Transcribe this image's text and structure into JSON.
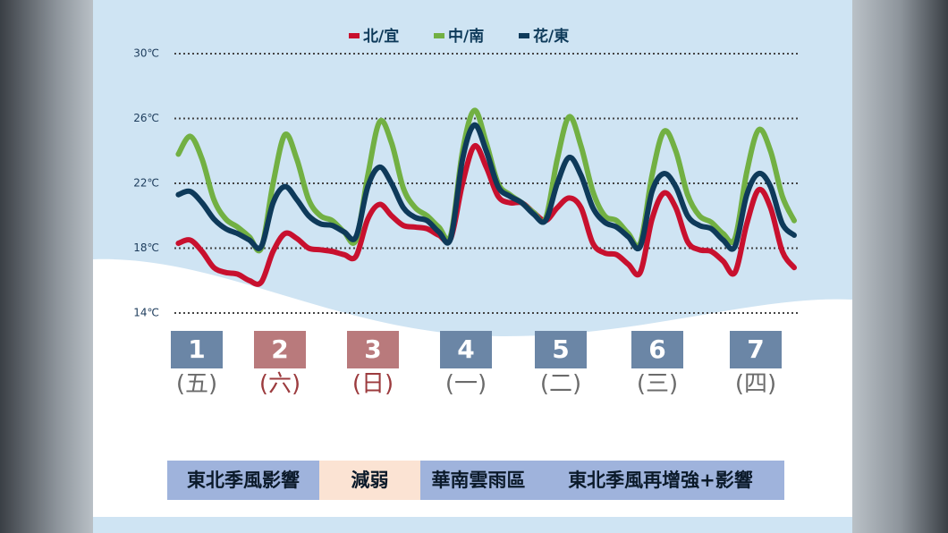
{
  "chart_data": {
    "type": "line",
    "x": [
      9,
      12,
      15,
      18,
      21,
      24,
      27,
      30,
      33,
      36,
      39,
      42,
      45,
      48,
      51,
      54,
      57,
      60,
      63,
      66,
      69,
      72,
      75,
      78,
      81,
      84,
      87,
      90,
      93,
      96,
      99,
      102,
      105,
      108,
      111,
      114,
      117,
      120,
      123,
      126,
      129,
      132,
      135,
      138,
      141,
      144,
      147,
      150,
      153,
      156,
      159,
      162,
      165
    ],
    "xlim": [
      8,
      165
    ],
    "ylim": [
      14,
      30
    ],
    "yticks": [
      {
        "value": 14,
        "label": "14℃"
      },
      {
        "value": 18,
        "label": "18℃"
      },
      {
        "value": 22,
        "label": "22℃"
      },
      {
        "value": 26,
        "label": "26℃"
      },
      {
        "value": 30,
        "label": "30℃"
      }
    ],
    "grid": true,
    "series": [
      {
        "name": "北/宜",
        "color": "#c8102e",
        "values": [
          18.3,
          18.5,
          17.8,
          16.8,
          16.5,
          16.4,
          16.0,
          15.9,
          17.8,
          18.9,
          18.6,
          18.0,
          17.9,
          17.8,
          17.6,
          17.5,
          19.8,
          20.7,
          20.0,
          19.4,
          19.3,
          19.2,
          18.8,
          18.6,
          22.0,
          24.3,
          23.0,
          21.2,
          20.8,
          20.8,
          20.2,
          19.7,
          20.5,
          21.1,
          20.5,
          18.3,
          17.7,
          17.6,
          17.0,
          16.5,
          19.8,
          21.4,
          20.5,
          18.4,
          17.9,
          17.8,
          17.2,
          16.5,
          19.5,
          21.6,
          20.5,
          17.8,
          16.8
        ]
      },
      {
        "name": "中/南",
        "color": "#72b043",
        "values": [
          23.8,
          24.9,
          23.5,
          21.0,
          19.8,
          19.3,
          18.7,
          18.0,
          22.0,
          25.0,
          23.5,
          21.0,
          20.0,
          19.7,
          19.0,
          18.5,
          22.5,
          25.8,
          24.5,
          21.7,
          20.5,
          20.0,
          19.3,
          18.8,
          24.0,
          26.5,
          24.5,
          22.0,
          21.3,
          20.8,
          20.2,
          19.8,
          23.5,
          26.1,
          24.3,
          21.5,
          20.0,
          19.7,
          18.9,
          18.3,
          22.5,
          25.2,
          24.0,
          21.3,
          20.0,
          19.6,
          18.9,
          18.6,
          22.7,
          25.3,
          24.0,
          21.2,
          19.7
        ]
      },
      {
        "name": "花/東",
        "color": "#0e3a5a",
        "values": [
          21.3,
          21.5,
          20.8,
          19.8,
          19.2,
          18.9,
          18.5,
          18.1,
          20.8,
          21.8,
          21.0,
          20.0,
          19.5,
          19.4,
          19.0,
          18.7,
          21.8,
          23.0,
          22.0,
          20.5,
          19.9,
          19.7,
          19.0,
          18.6,
          23.5,
          25.6,
          24.0,
          21.8,
          21.2,
          20.8,
          20.1,
          19.7,
          22.0,
          23.6,
          22.5,
          20.5,
          19.6,
          19.3,
          18.7,
          18.1,
          21.5,
          22.6,
          21.8,
          20.0,
          19.4,
          19.2,
          18.5,
          18.1,
          21.3,
          22.6,
          21.8,
          19.5,
          18.8
        ]
      }
    ]
  },
  "days": [
    {
      "num": "1",
      "weekday": "(五)",
      "box": "#6b86a6",
      "text": "#6b6b6b"
    },
    {
      "num": "2",
      "weekday": "(六)",
      "box": "#b97a7c",
      "text": "#9c3b3e"
    },
    {
      "num": "3",
      "weekday": "(日)",
      "box": "#b97a7c",
      "text": "#9c3b3e"
    },
    {
      "num": "4",
      "weekday": "(一)",
      "box": "#6b86a6",
      "text": "#6b6b6b"
    },
    {
      "num": "5",
      "weekday": "(二)",
      "box": "#6b86a6",
      "text": "#6b6b6b"
    },
    {
      "num": "6",
      "weekday": "(三)",
      "box": "#6b86a6",
      "text": "#6b6b6b"
    },
    {
      "num": "7",
      "weekday": "(四)",
      "box": "#6b86a6",
      "text": "#6b6b6b"
    }
  ],
  "phases": [
    {
      "label": "東北季風影響",
      "color": "#9fb3dc"
    },
    {
      "label": "減弱",
      "color": "#fbe3d3"
    },
    {
      "label": "華南雲雨區",
      "color": "#9fb3dc"
    },
    {
      "label": "東北季風再增強+影響",
      "color": "#9fb3dc"
    }
  ]
}
